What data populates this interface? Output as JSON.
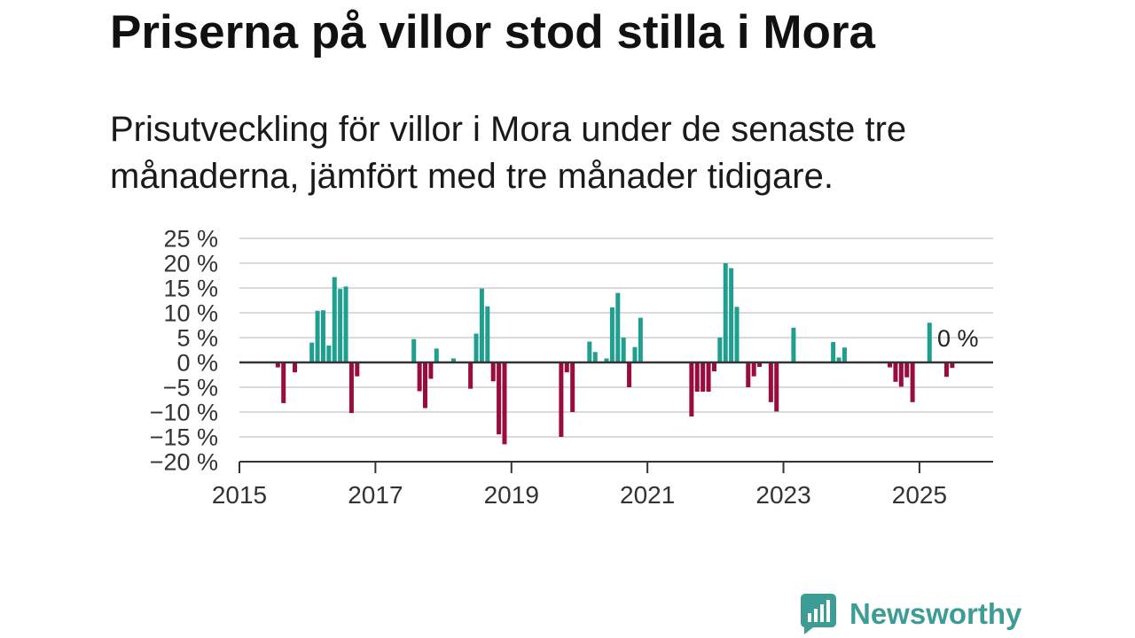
{
  "colors": {
    "positive": "#1f9f8f",
    "negative": "#9a0b3e",
    "grid": "#dadada",
    "axis": "#333333",
    "tick_text": "#333333",
    "annotation_text": "#222222",
    "logo": "#3d9c96"
  },
  "chart_data": {
    "type": "bar",
    "title": "Priserna på villor stod stilla i Mora",
    "subtitle": "Prisutveckling för villor i Mora under de senaste tre månaderna, jämfört med tre månader tidigare.",
    "x": [
      "2015-07",
      "2015-08",
      "2015-10",
      "2016-01",
      "2016-02",
      "2016-03",
      "2016-04",
      "2016-05",
      "2016-06",
      "2016-07",
      "2016-08",
      "2016-09",
      "2017-07",
      "2017-08",
      "2017-09",
      "2017-10",
      "2017-11",
      "2018-02",
      "2018-05",
      "2018-06",
      "2018-07",
      "2018-08",
      "2018-09",
      "2018-10",
      "2018-11",
      "2019-09",
      "2019-10",
      "2019-11",
      "2020-02",
      "2020-03",
      "2020-05",
      "2020-06",
      "2020-07",
      "2020-08",
      "2020-09",
      "2020-10",
      "2020-11",
      "2021-08",
      "2021-09",
      "2021-10",
      "2021-11",
      "2021-12",
      "2022-01",
      "2022-02",
      "2022-03",
      "2022-04",
      "2022-06",
      "2022-07",
      "2022-08",
      "2022-10",
      "2022-11",
      "2023-02",
      "2023-09",
      "2023-10",
      "2023-11",
      "2024-07",
      "2024-08",
      "2024-09",
      "2024-10",
      "2024-11",
      "2025-02",
      "2025-05",
      "2025-06",
      "2025-07"
    ],
    "values": [
      -1,
      -8.2,
      -2,
      4,
      10.4,
      10.5,
      3.4,
      17.2,
      14.8,
      15.3,
      -10.2,
      -2.8,
      4.7,
      -5.8,
      -9.2,
      -3.3,
      2.8,
      0.8,
      -5.3,
      5.8,
      14.9,
      11.3,
      -3.8,
      -14.5,
      -16.5,
      -15,
      -2,
      -10,
      4.2,
      2.1,
      0.8,
      11.1,
      14,
      5,
      -5,
      3.1,
      9,
      -10.9,
      -5.9,
      -5.9,
      -5.9,
      -1.8,
      5,
      20,
      19,
      11.2,
      -5,
      -2.8,
      -0.9,
      -8,
      -9.9,
      7,
      4.1,
      1,
      3,
      -1,
      -3.9,
      -4.9,
      -3,
      -8,
      8,
      -2.9,
      -1.1,
      0
    ],
    "ylim": [
      -20,
      25
    ],
    "xlim": [
      "2015-01",
      "2026-02"
    ],
    "yticks": [
      {
        "value": 25,
        "label": "25 %"
      },
      {
        "value": 20,
        "label": "20 %"
      },
      {
        "value": 15,
        "label": "15 %"
      },
      {
        "value": 10,
        "label": "10 %"
      },
      {
        "value": 5,
        "label": "5 %"
      },
      {
        "value": 0,
        "label": "0 %"
      },
      {
        "value": -5,
        "label": "−5 %"
      },
      {
        "value": -10,
        "label": "−10 %"
      },
      {
        "value": -15,
        "label": "−15 %"
      },
      {
        "value": -20,
        "label": "−20 %"
      }
    ],
    "xticks": [
      {
        "value": "2015-01",
        "label": "2015"
      },
      {
        "value": "2017-01",
        "label": "2017"
      },
      {
        "value": "2019-01",
        "label": "2019"
      },
      {
        "value": "2021-01",
        "label": "2021"
      },
      {
        "value": "2023-01",
        "label": "2023"
      },
      {
        "value": "2025-01",
        "label": "2025"
      }
    ],
    "annotations": [
      {
        "x": "2025-07",
        "value": 0,
        "text": "0 %"
      }
    ],
    "grid": true,
    "legend": "none"
  },
  "logo": {
    "text": "Newsworthy",
    "icon": "bar-chart-speech-bubble-icon"
  }
}
